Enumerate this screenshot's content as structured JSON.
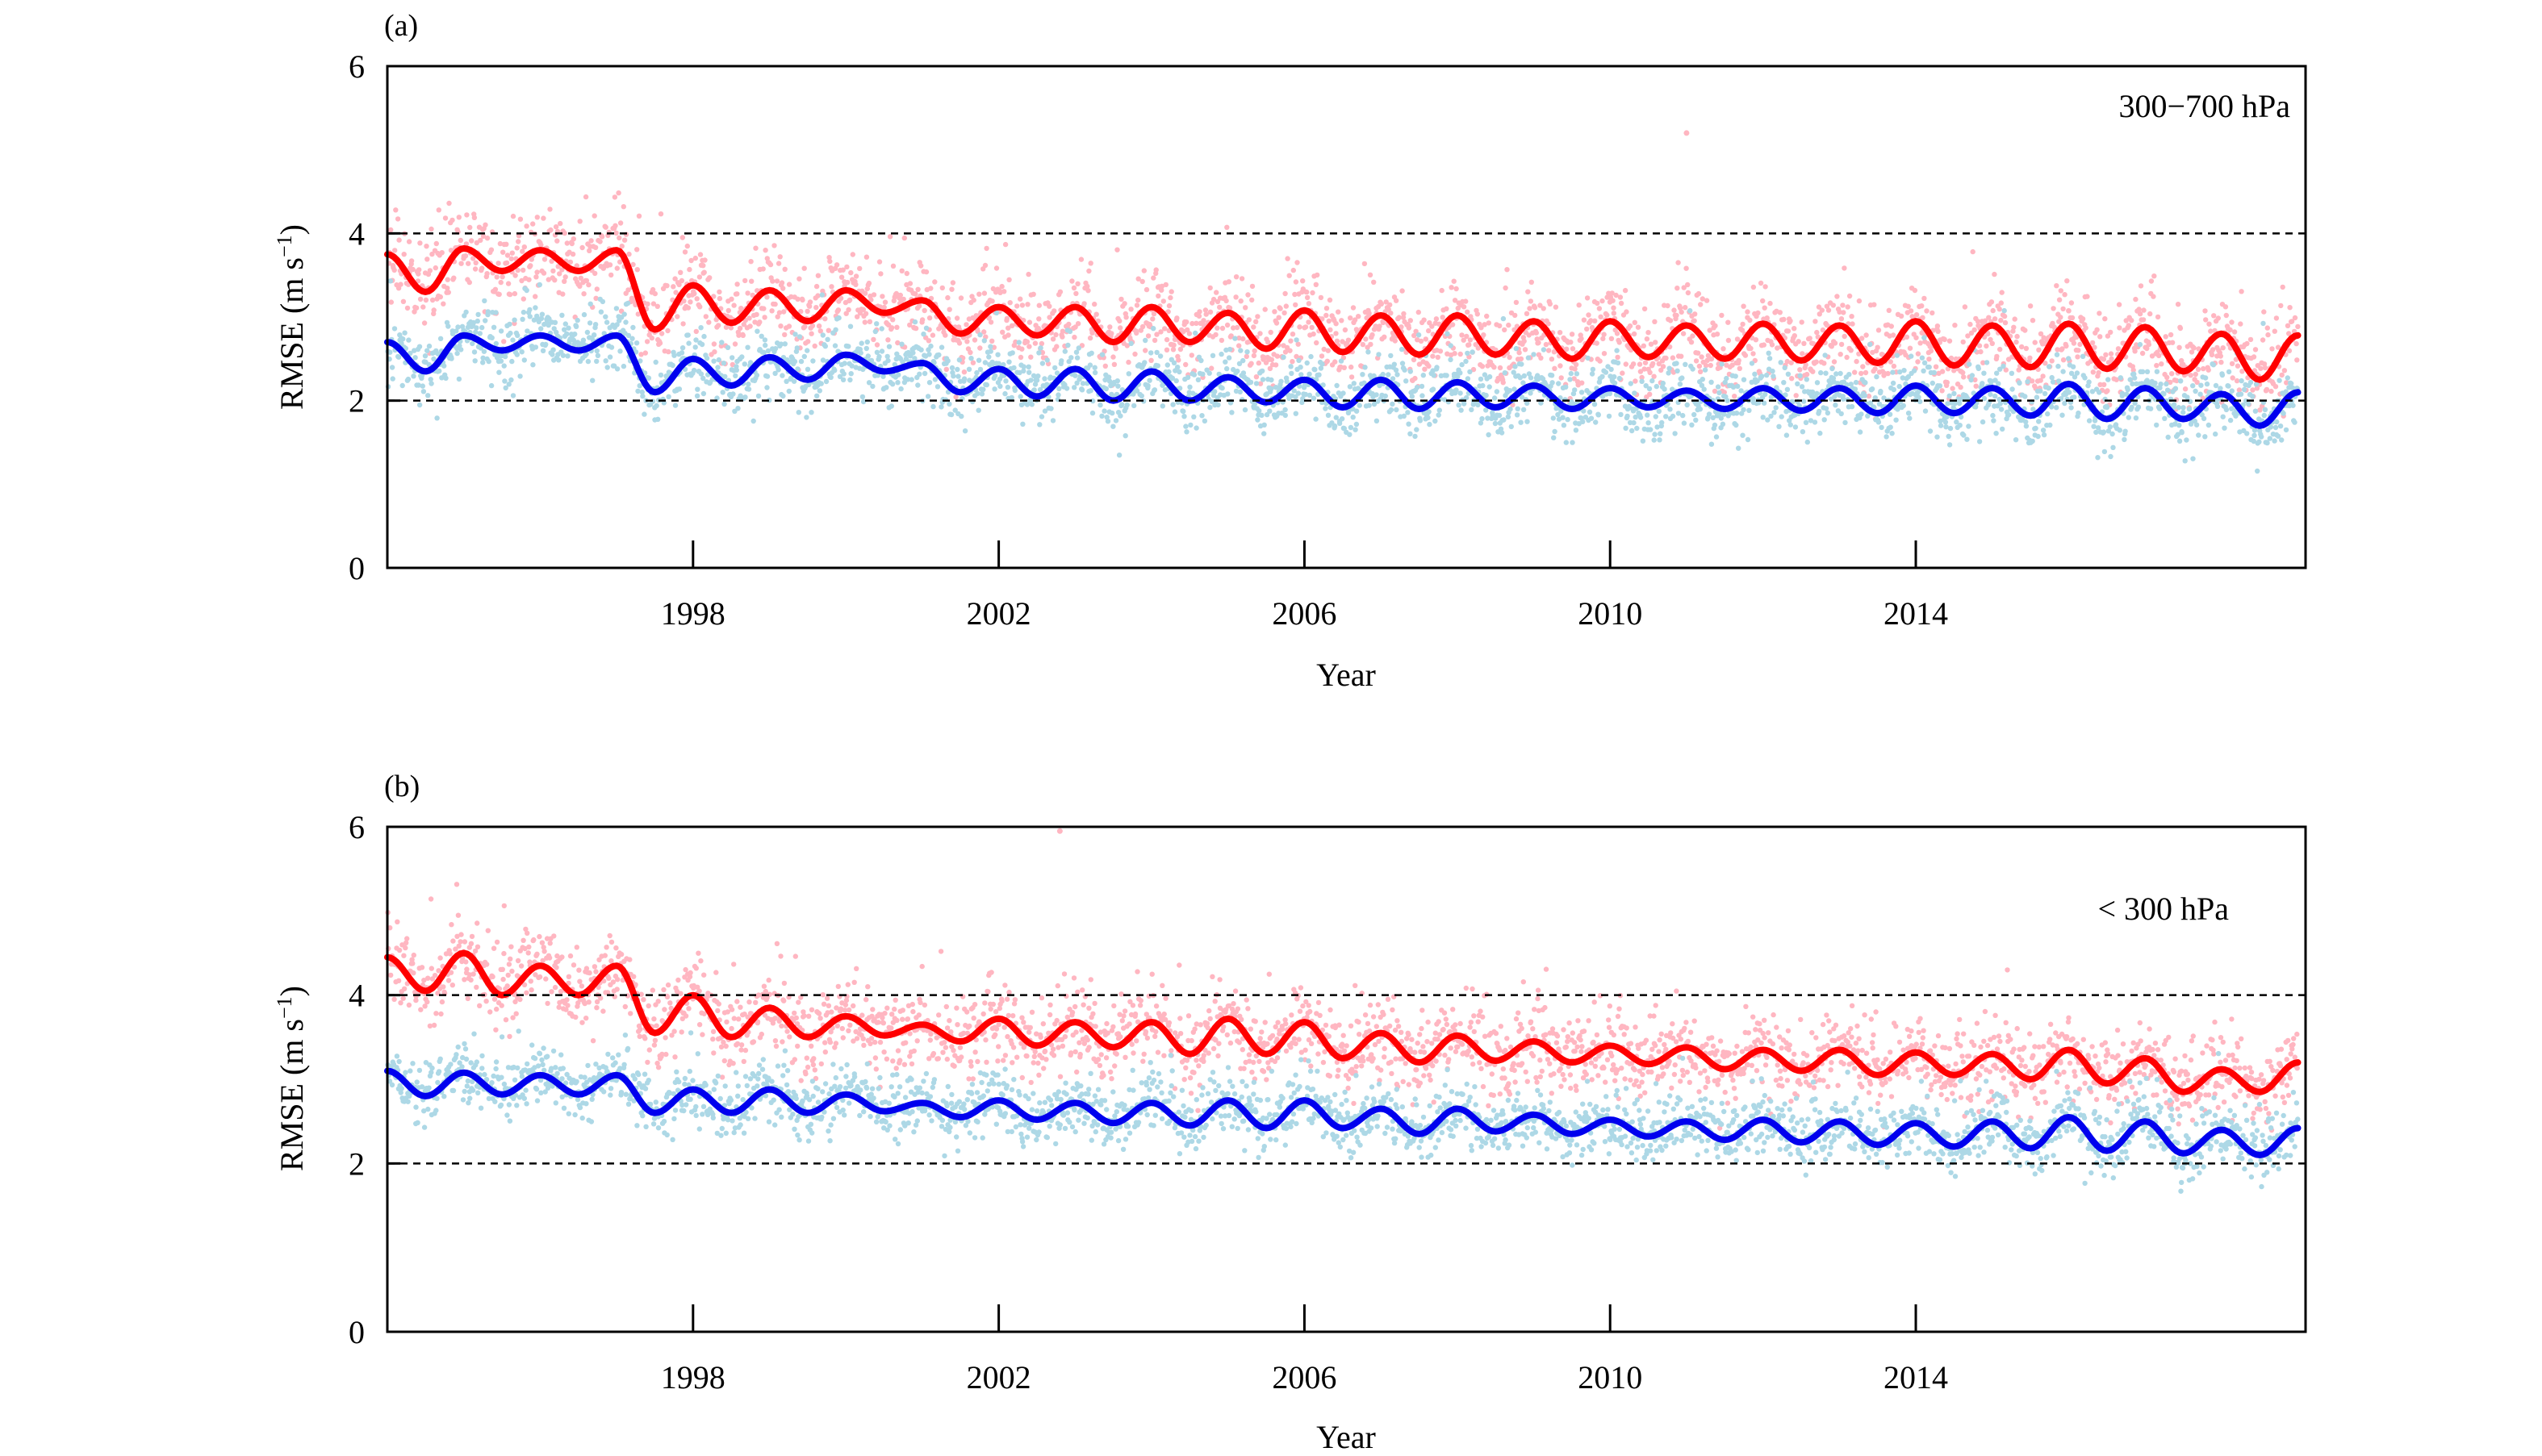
{
  "chart_data": [
    {
      "panel_label": "(a)",
      "type": "scatter",
      "annotation": "300−700 hPa",
      "xlabel": "Year",
      "ylabel_main": "RMSE (m s",
      "ylabel_sup": "−1",
      "ylabel_end": ")",
      "xlim": [
        1994.0,
        2019.1
      ],
      "ylim": [
        0,
        6
      ],
      "x_ticks": [
        1998,
        2002,
        2006,
        2010,
        2014
      ],
      "x_tick_labels": [
        "1998",
        "2002",
        "2006",
        "2010",
        "2014"
      ],
      "y_ticks": [
        0,
        2,
        4,
        6
      ],
      "y_tick_labels": [
        "0",
        "2",
        "4",
        "6"
      ],
      "reference_lines": [
        2,
        4
      ],
      "grid": false,
      "series": [
        {
          "role": "smoothed",
          "color": "#ff0000",
          "smoothed_years": [
            1994.0,
            1994.5,
            1995.0,
            1995.5,
            1996.0,
            1996.5,
            1997.0,
            1997.5,
            1998.0,
            1998.5,
            1999.0,
            1999.5,
            2000.0,
            2000.5,
            2001.0,
            2001.5,
            2002.0,
            2002.5,
            2003.0,
            2003.5,
            2004.0,
            2004.5,
            2005.0,
            2005.5,
            2006.0,
            2006.5,
            2007.0,
            2007.5,
            2008.0,
            2008.5,
            2009.0,
            2009.5,
            2010.0,
            2010.5,
            2011.0,
            2011.5,
            2012.0,
            2012.5,
            2013.0,
            2013.5,
            2014.0,
            2014.5,
            2015.0,
            2015.5,
            2016.0,
            2016.5,
            2017.0,
            2017.5,
            2018.0,
            2018.5,
            2019.0
          ],
          "smoothed_values": [
            3.75,
            3.3,
            3.82,
            3.55,
            3.8,
            3.55,
            3.8,
            2.85,
            3.38,
            2.93,
            3.32,
            2.95,
            3.32,
            3.05,
            3.2,
            2.8,
            3.12,
            2.78,
            3.12,
            2.7,
            3.12,
            2.7,
            3.05,
            2.62,
            3.08,
            2.58,
            3.02,
            2.55,
            3.02,
            2.55,
            2.95,
            2.5,
            2.95,
            2.52,
            2.9,
            2.5,
            2.92,
            2.48,
            2.9,
            2.45,
            2.95,
            2.42,
            2.9,
            2.4,
            2.92,
            2.38,
            2.88,
            2.35,
            2.8,
            2.25,
            2.78
          ],
          "scatter_color": "#ffb6c1",
          "scatter_spread": 0.5
        },
        {
          "role": "smoothed",
          "color": "#0000ee",
          "smoothed_years": [
            1994.0,
            1994.5,
            1995.0,
            1995.5,
            1996.0,
            1996.5,
            1997.0,
            1997.5,
            1998.0,
            1998.5,
            1999.0,
            1999.5,
            2000.0,
            2000.5,
            2001.0,
            2001.5,
            2002.0,
            2002.5,
            2003.0,
            2003.5,
            2004.0,
            2004.5,
            2005.0,
            2005.5,
            2006.0,
            2006.5,
            2007.0,
            2007.5,
            2008.0,
            2008.5,
            2009.0,
            2009.5,
            2010.0,
            2010.5,
            2011.0,
            2011.5,
            2012.0,
            2012.5,
            2013.0,
            2013.5,
            2014.0,
            2014.5,
            2015.0,
            2015.5,
            2016.0,
            2016.5,
            2017.0,
            2017.5,
            2018.0,
            2018.5,
            2019.0
          ],
          "smoothed_values": [
            2.7,
            2.35,
            2.78,
            2.6,
            2.78,
            2.6,
            2.78,
            2.1,
            2.5,
            2.18,
            2.52,
            2.25,
            2.55,
            2.35,
            2.45,
            2.1,
            2.38,
            2.05,
            2.38,
            2.0,
            2.35,
            2.0,
            2.28,
            1.98,
            2.25,
            1.92,
            2.25,
            1.9,
            2.22,
            1.92,
            2.18,
            1.9,
            2.15,
            1.92,
            2.12,
            1.9,
            2.15,
            1.88,
            2.15,
            1.85,
            2.18,
            1.85,
            2.15,
            1.82,
            2.2,
            1.78,
            2.15,
            1.78,
            2.08,
            1.7,
            2.1
          ],
          "scatter_color": "#add8e6",
          "scatter_spread": 0.38
        }
      ],
      "outliers": [
        {
          "x": 2011.0,
          "y": 5.2
        }
      ]
    },
    {
      "panel_label": "(b)",
      "type": "scatter",
      "annotation": "< 300 hPa",
      "xlabel": "Year",
      "ylabel_main": "RMSE (m s",
      "ylabel_sup": "−1",
      "ylabel_end": ")",
      "xlim": [
        1994.0,
        2019.1
      ],
      "ylim": [
        0,
        6
      ],
      "x_ticks": [
        1998,
        2002,
        2006,
        2010,
        2014
      ],
      "x_tick_labels": [
        "1998",
        "2002",
        "2006",
        "2010",
        "2014"
      ],
      "y_ticks": [
        0,
        2,
        4,
        6
      ],
      "y_tick_labels": [
        "0",
        "2",
        "4",
        "6"
      ],
      "reference_lines": [
        2,
        4
      ],
      "grid": false,
      "series": [
        {
          "role": "smoothed",
          "color": "#ff0000",
          "smoothed_years": [
            1994.0,
            1994.5,
            1995.0,
            1995.5,
            1996.0,
            1996.5,
            1997.0,
            1997.5,
            1998.0,
            1998.5,
            1999.0,
            1999.5,
            2000.0,
            2000.5,
            2001.0,
            2001.5,
            2002.0,
            2002.5,
            2003.0,
            2003.5,
            2004.0,
            2004.5,
            2005.0,
            2005.5,
            2006.0,
            2006.5,
            2007.0,
            2007.5,
            2008.0,
            2008.5,
            2009.0,
            2009.5,
            2010.0,
            2010.5,
            2011.0,
            2011.5,
            2012.0,
            2012.5,
            2013.0,
            2013.5,
            2014.0,
            2014.5,
            2015.0,
            2015.5,
            2016.0,
            2016.5,
            2017.0,
            2017.5,
            2018.0,
            2018.5,
            2019.0
          ],
          "smoothed_values": [
            4.45,
            4.05,
            4.5,
            4.0,
            4.35,
            4.0,
            4.35,
            3.55,
            4.0,
            3.5,
            3.85,
            3.5,
            3.75,
            3.52,
            3.65,
            3.45,
            3.72,
            3.4,
            3.68,
            3.38,
            3.68,
            3.3,
            3.72,
            3.3,
            3.68,
            3.25,
            3.55,
            3.2,
            3.52,
            3.22,
            3.45,
            3.2,
            3.4,
            3.18,
            3.38,
            3.12,
            3.35,
            3.1,
            3.35,
            3.05,
            3.32,
            3.05,
            3.3,
            3.0,
            3.35,
            2.95,
            3.25,
            2.85,
            3.12,
            2.85,
            3.2
          ],
          "scatter_color": "#ffb6c1",
          "scatter_spread": 0.45
        },
        {
          "role": "smoothed",
          "color": "#0000ee",
          "smoothed_years": [
            1994.0,
            1994.5,
            1995.0,
            1995.5,
            1996.0,
            1996.5,
            1997.0,
            1997.5,
            1998.0,
            1998.5,
            1999.0,
            1999.5,
            2000.0,
            2000.5,
            2001.0,
            2001.5,
            2002.0,
            2002.5,
            2003.0,
            2003.5,
            2004.0,
            2004.5,
            2005.0,
            2005.5,
            2006.0,
            2006.5,
            2007.0,
            2007.5,
            2008.0,
            2008.5,
            2009.0,
            2009.5,
            2010.0,
            2010.5,
            2011.0,
            2011.5,
            2012.0,
            2012.5,
            2013.0,
            2013.5,
            2014.0,
            2014.5,
            2015.0,
            2015.5,
            2016.0,
            2016.5,
            2017.0,
            2017.5,
            2018.0,
            2018.5,
            2019.0
          ],
          "smoothed_values": [
            3.1,
            2.8,
            3.08,
            2.82,
            3.05,
            2.82,
            3.05,
            2.6,
            2.88,
            2.6,
            2.88,
            2.6,
            2.82,
            2.62,
            2.72,
            2.55,
            2.75,
            2.52,
            2.72,
            2.48,
            2.72,
            2.45,
            2.75,
            2.42,
            2.75,
            2.42,
            2.65,
            2.35,
            2.65,
            2.38,
            2.58,
            2.35,
            2.52,
            2.32,
            2.5,
            2.28,
            2.52,
            2.25,
            2.5,
            2.22,
            2.48,
            2.2,
            2.5,
            2.18,
            2.55,
            2.15,
            2.5,
            2.12,
            2.4,
            2.1,
            2.42
          ],
          "scatter_color": "#add8e6",
          "scatter_spread": 0.35
        }
      ],
      "outliers": [
        {
          "x": 2002.8,
          "y": 5.95
        }
      ]
    }
  ]
}
